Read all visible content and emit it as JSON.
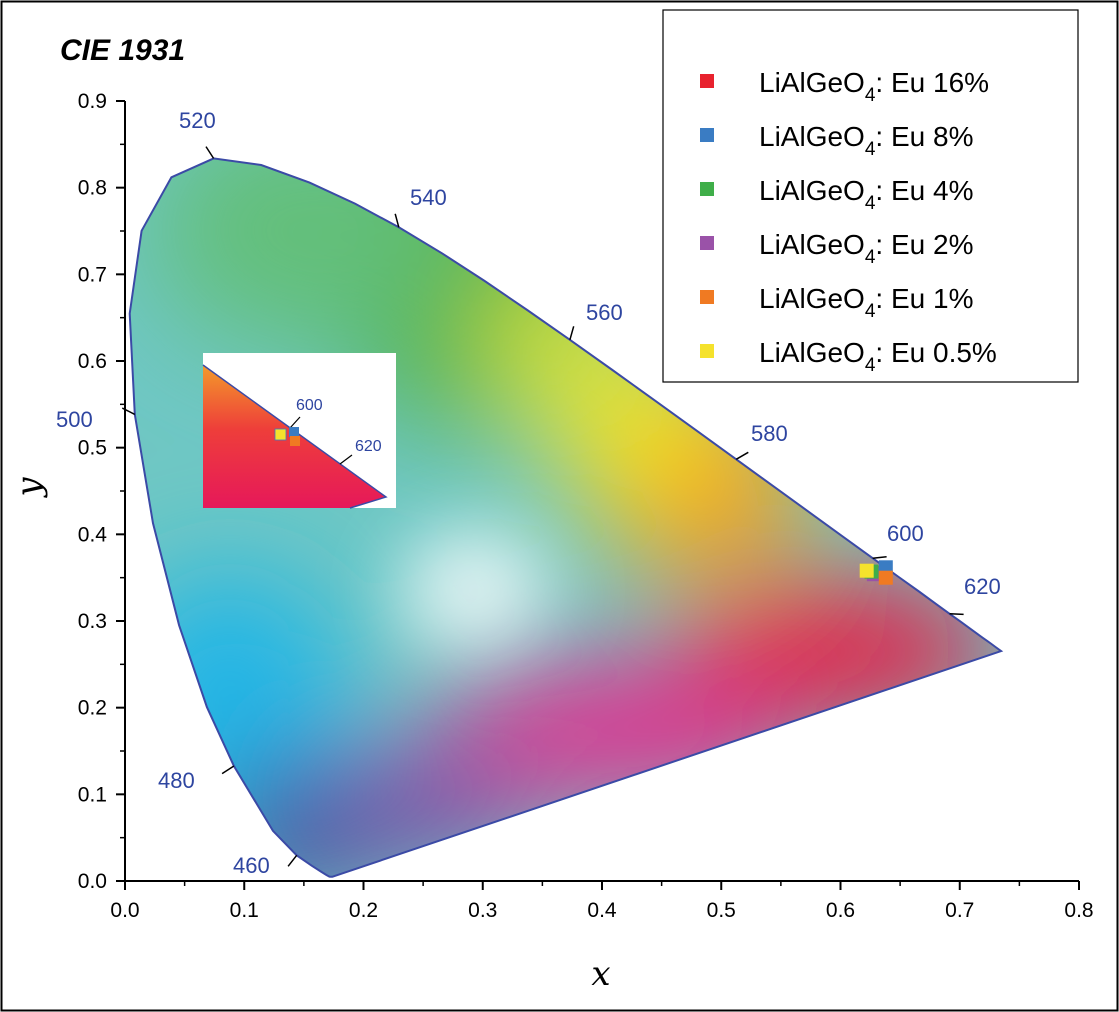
{
  "chart_data": {
    "type": "scatter",
    "title": "CIE 1931",
    "xlabel": "x",
    "ylabel": "y",
    "xlim": [
      0.0,
      0.8
    ],
    "ylim": [
      0.0,
      0.9
    ],
    "xticks": [
      "0.0",
      "0.1",
      "0.2",
      "0.3",
      "0.4",
      "0.5",
      "0.6",
      "0.7",
      "0.8"
    ],
    "yticks": [
      "0.0",
      "0.1",
      "0.2",
      "0.3",
      "0.4",
      "0.5",
      "0.6",
      "0.7",
      "0.8",
      "0.9"
    ],
    "xtick_values": [
      0.0,
      0.1,
      0.2,
      0.3,
      0.4,
      0.5,
      0.6,
      0.7,
      0.8
    ],
    "ytick_values": [
      0.0,
      0.1,
      0.2,
      0.3,
      0.4,
      0.5,
      0.6,
      0.7,
      0.8,
      0.9
    ],
    "grid": false,
    "legend_position": "top-right",
    "series": [
      {
        "name_main": "LiAlGeO",
        "name_sub": "4",
        "name_tail": ": Eu 16%",
        "color": "#e8222e",
        "x": [
          0.63
        ],
        "y": [
          0.355
        ]
      },
      {
        "name_main": "LiAlGeO",
        "name_sub": "4",
        "name_tail": ": Eu 8%",
        "color": "#3a7cc3",
        "x": [
          0.638
        ],
        "y": [
          0.362
        ]
      },
      {
        "name_main": "LiAlGeO",
        "name_sub": "4",
        "name_tail": ": Eu 4%",
        "color": "#3fae49",
        "x": [
          0.626
        ],
        "y": [
          0.357
        ]
      },
      {
        "name_main": "LiAlGeO",
        "name_sub": "4",
        "name_tail": ": Eu 2%",
        "color": "#9a52a8",
        "x": [
          0.628
        ],
        "y": [
          0.354
        ]
      },
      {
        "name_main": "LiAlGeO",
        "name_sub": "4",
        "name_tail": ": Eu 1%",
        "color": "#f07a22",
        "x": [
          0.638
        ],
        "y": [
          0.35
        ]
      },
      {
        "name_main": "LiAlGeO",
        "name_sub": "4",
        "name_tail": ": Eu 0.5%",
        "color": "#f5e22c",
        "x": [
          0.622
        ],
        "y": [
          0.358
        ]
      }
    ],
    "spectral_locus": {
      "x": [
        0.1741,
        0.1738,
        0.1736,
        0.1733,
        0.1726,
        0.1714,
        0.1689,
        0.1644,
        0.1566,
        0.144,
        0.1241,
        0.0913,
        0.0687,
        0.0454,
        0.0235,
        0.0082,
        0.0039,
        0.0139,
        0.0389,
        0.0743,
        0.1142,
        0.1547,
        0.1929,
        0.2296,
        0.2658,
        0.3016,
        0.3373,
        0.3731,
        0.4087,
        0.4441,
        0.4788,
        0.5125,
        0.5448,
        0.5752,
        0.6029,
        0.627,
        0.6482,
        0.6658,
        0.6801,
        0.6915,
        0.7006,
        0.7079,
        0.714,
        0.719,
        0.723,
        0.726,
        0.7283,
        0.73,
        0.7347
      ],
      "y": [
        0.005,
        0.0049,
        0.0049,
        0.0048,
        0.0048,
        0.0051,
        0.0069,
        0.0109,
        0.0177,
        0.0297,
        0.0578,
        0.1327,
        0.2007,
        0.295,
        0.4127,
        0.5384,
        0.6548,
        0.7502,
        0.812,
        0.8338,
        0.8262,
        0.8059,
        0.7816,
        0.7543,
        0.7243,
        0.6923,
        0.6589,
        0.6245,
        0.5896,
        0.5547,
        0.5202,
        0.4866,
        0.4544,
        0.4242,
        0.3965,
        0.3725,
        0.3514,
        0.334,
        0.3197,
        0.3083,
        0.2993,
        0.292,
        0.2859,
        0.2809,
        0.277,
        0.274,
        0.2717,
        0.27,
        0.2653
      ]
    },
    "wavelength_markers": [
      {
        "label": "460",
        "x": 0.144,
        "y": 0.0297
      },
      {
        "label": "480",
        "x": 0.0913,
        "y": 0.1327
      },
      {
        "label": "500",
        "x": 0.0082,
        "y": 0.5384
      },
      {
        "label": "520",
        "x": 0.0743,
        "y": 0.8338
      },
      {
        "label": "540",
        "x": 0.2296,
        "y": 0.7543
      },
      {
        "label": "560",
        "x": 0.3731,
        "y": 0.6245
      },
      {
        "label": "580",
        "x": 0.5125,
        "y": 0.4866
      },
      {
        "label": "600",
        "x": 0.627,
        "y": 0.3725
      },
      {
        "label": "620",
        "x": 0.6915,
        "y": 0.3083
      }
    ],
    "inset": {
      "labels": [
        "600",
        "620"
      ]
    }
  }
}
